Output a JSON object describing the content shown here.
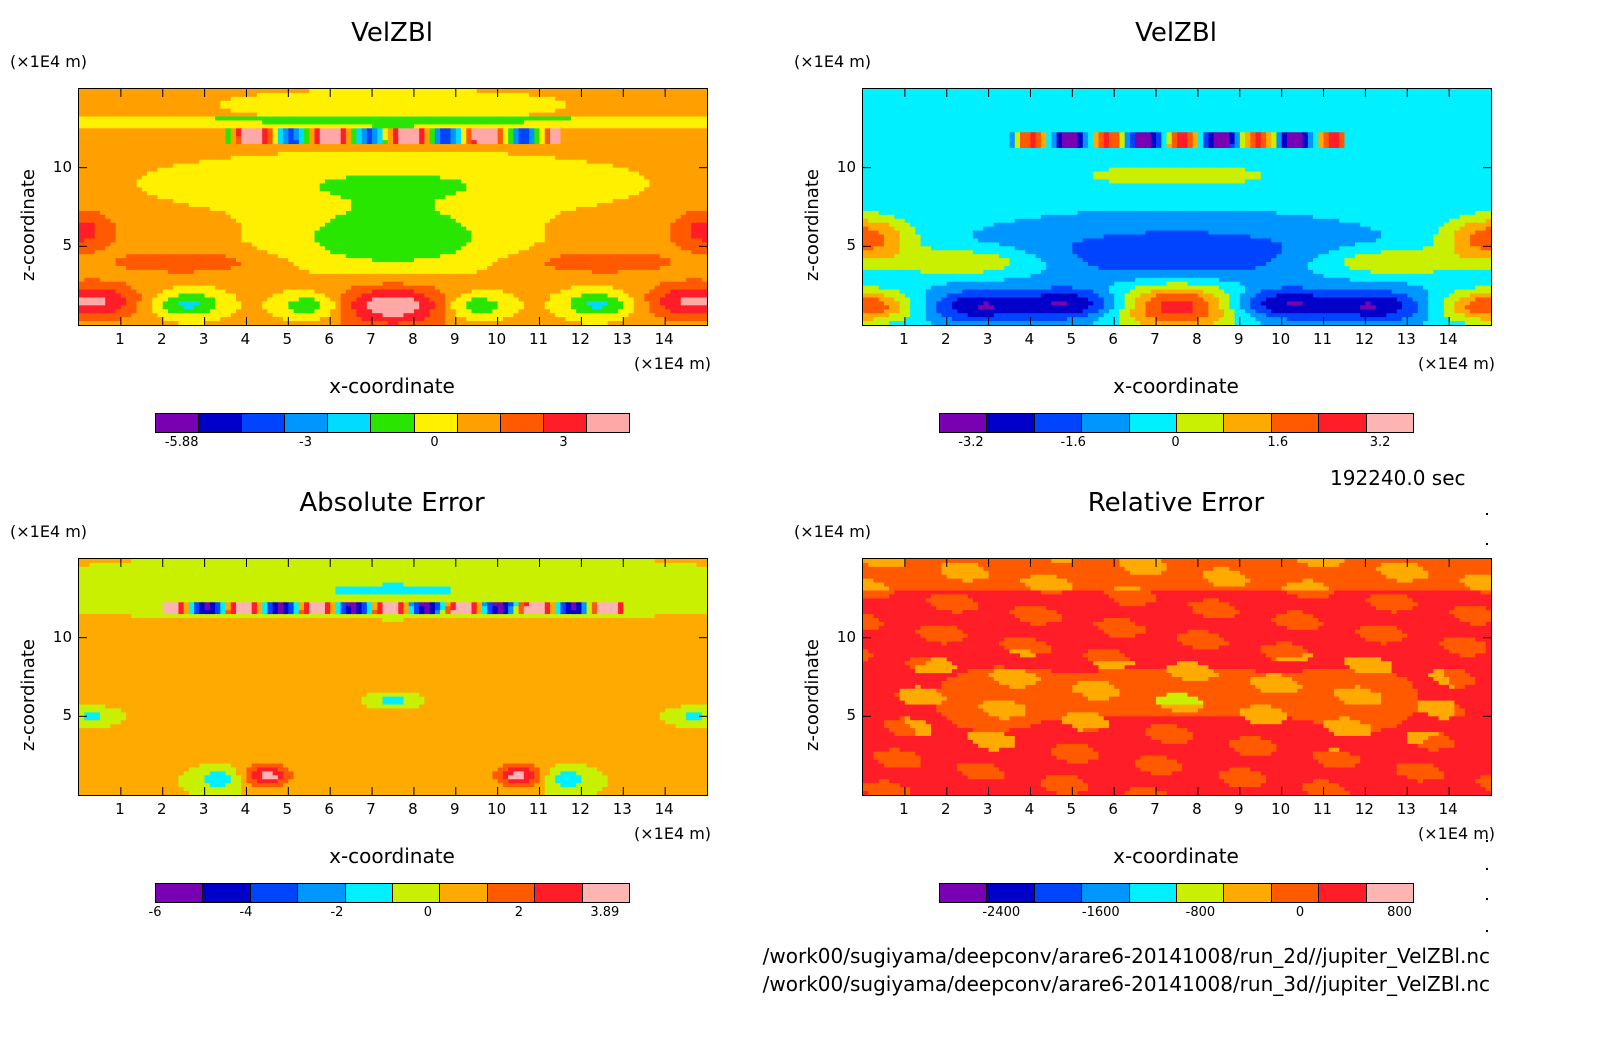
{
  "figure": {
    "time_label": "192240.0 sec",
    "files": [
      "/work00/sugiyama/deepconv/arare6-20141008/run_2d//jupiter_VelZBl.nc",
      "/work00/sugiyama/deepconv/arare6-20141008/run_3d//jupiter_VelZBl.nc"
    ]
  },
  "chart_data": [
    {
      "type": "heatmap",
      "title": "VelZBl",
      "xlabel": "x-coordinate",
      "ylabel": "z-coordinate",
      "x_unit": "(×1E4 m)",
      "y_unit": "(×1E4 m)",
      "x_ticks": [
        1,
        2,
        3,
        4,
        5,
        6,
        7,
        8,
        9,
        10,
        11,
        12,
        13,
        14
      ],
      "y_ticks": [
        5,
        10
      ],
      "xlim": [
        0,
        15
      ],
      "ylim": [
        0,
        15
      ],
      "colorbar": {
        "colors": [
          "#7a00b4",
          "#0000c8",
          "#0044ff",
          "#0096ff",
          "#00dcff",
          "#28e600",
          "#fff000",
          "#ffa000",
          "#ff5a00",
          "#ff1e28",
          "#ffa8a8"
        ],
        "tick_values": [
          -5.88,
          -3,
          0,
          3
        ],
        "tick_labels": [
          "-5.88",
          "-3",
          "0",
          "3"
        ]
      }
    },
    {
      "type": "heatmap",
      "title": "VelZBl",
      "xlabel": "x-coordinate",
      "ylabel": "z-coordinate",
      "x_unit": "(×1E4 m)",
      "y_unit": "(×1E4 m)",
      "x_ticks": [
        1,
        2,
        3,
        4,
        5,
        6,
        7,
        8,
        9,
        10,
        11,
        12,
        13,
        14
      ],
      "y_ticks": [
        5,
        10
      ],
      "xlim": [
        0,
        15
      ],
      "ylim": [
        0,
        15
      ],
      "colorbar": {
        "colors": [
          "#7a00b4",
          "#0000c8",
          "#0044ff",
          "#0096ff",
          "#00f0ff",
          "#c8f000",
          "#ffaa00",
          "#ff5a00",
          "#ff1e28",
          "#ffb4b4"
        ],
        "tick_values": [
          -3.2,
          -1.6,
          0,
          1.6,
          3.2
        ],
        "tick_labels": [
          "-3.2",
          "-1.6",
          "0",
          "1.6",
          "3.2"
        ]
      }
    },
    {
      "type": "heatmap",
      "title": "Absolute Error",
      "xlabel": "x-coordinate",
      "ylabel": "z-coordinate",
      "x_unit": "(×1E4 m)",
      "y_unit": "(×1E4 m)",
      "x_ticks": [
        1,
        2,
        3,
        4,
        5,
        6,
        7,
        8,
        9,
        10,
        11,
        12,
        13,
        14
      ],
      "y_ticks": [
        5,
        10
      ],
      "xlim": [
        0,
        15
      ],
      "ylim": [
        0,
        15
      ],
      "colorbar": {
        "colors": [
          "#7a00b4",
          "#0000c8",
          "#0044ff",
          "#0096ff",
          "#00f0ff",
          "#c8f000",
          "#ffaa00",
          "#ff5a00",
          "#ff1e28",
          "#ffb4b4"
        ],
        "tick_values": [
          -6,
          -4,
          -2,
          0,
          2,
          3.89
        ],
        "tick_labels": [
          "-6",
          "-4",
          "-2",
          "0",
          "2",
          "3.89"
        ]
      }
    },
    {
      "type": "heatmap",
      "title": "Relative Error",
      "xlabel": "x-coordinate",
      "ylabel": "z-coordinate",
      "x_unit": "(×1E4 m)",
      "y_unit": "(×1E4 m)",
      "x_ticks": [
        1,
        2,
        3,
        4,
        5,
        6,
        7,
        8,
        9,
        10,
        11,
        12,
        13,
        14
      ],
      "y_ticks": [
        5,
        10
      ],
      "xlim": [
        0,
        15
      ],
      "ylim": [
        0,
        15
      ],
      "colorbar": {
        "colors": [
          "#7a00b4",
          "#0000c8",
          "#0044ff",
          "#0096ff",
          "#00f0ff",
          "#c8f000",
          "#ffaa00",
          "#ff5a00",
          "#ff1e28",
          "#ffb4b4"
        ],
        "tick_values": [
          -2400,
          -1600,
          -800,
          0,
          800
        ],
        "tick_labels": [
          "-2400",
          "-1600",
          "-800",
          "0",
          "800"
        ]
      }
    }
  ]
}
